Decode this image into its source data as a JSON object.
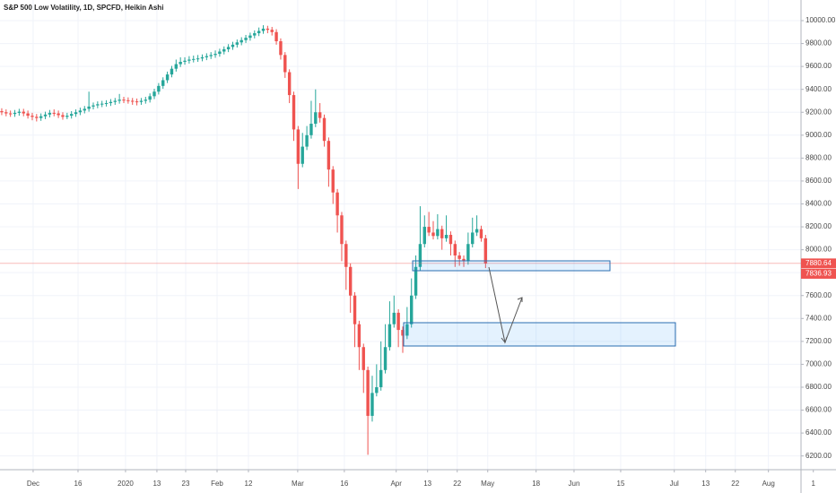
{
  "chart_data": {
    "type": "candlestick",
    "title": "S&P 500 Low Volatility, 1D, SPCFD, Heikin Ashi",
    "up_color": "#26a69a",
    "down_color": "#ef5350",
    "grid": true,
    "xlim": [
      -0.4,
      191.4
    ],
    "ylim": [
      6080,
      10180
    ],
    "xticks": [
      {
        "value": 7.2,
        "label": "Dec"
      },
      {
        "value": 17.5,
        "label": "16"
      },
      {
        "value": 28.4,
        "label": "2020"
      },
      {
        "value": 35.6,
        "label": "13"
      },
      {
        "value": 42.2,
        "label": "23"
      },
      {
        "value": 49.4,
        "label": "Feb"
      },
      {
        "value": 56.6,
        "label": "12"
      },
      {
        "value": 67.9,
        "label": "Mar"
      },
      {
        "value": 78.6,
        "label": "16"
      },
      {
        "value": 90.5,
        "label": "Apr"
      },
      {
        "value": 97.7,
        "label": "13"
      },
      {
        "value": 104.5,
        "label": "22"
      },
      {
        "value": 111.5,
        "label": "May"
      },
      {
        "value": 122.6,
        "label": "18"
      },
      {
        "value": 131.3,
        "label": "Jun"
      },
      {
        "value": 142.0,
        "label": "15"
      },
      {
        "value": 154.3,
        "label": "Jul"
      },
      {
        "value": 161.5,
        "label": "13"
      },
      {
        "value": 168.3,
        "label": "22"
      },
      {
        "value": 175.9,
        "label": "Aug"
      },
      {
        "value": 186.2,
        "label": "1"
      }
    ],
    "yticks": [
      {
        "value": 6200,
        "label": "6200.00"
      },
      {
        "value": 6400,
        "label": "6400.00"
      },
      {
        "value": 6600,
        "label": "6600.00"
      },
      {
        "value": 6800,
        "label": "6800.00"
      },
      {
        "value": 7000,
        "label": "7000.00"
      },
      {
        "value": 7200,
        "label": "7200.00"
      },
      {
        "value": 7400,
        "label": "7400.00"
      },
      {
        "value": 7600,
        "label": "7600.00"
      },
      {
        "value": 7800,
        "label": "7800.00"
      },
      {
        "value": 8000,
        "label": "8000.00"
      },
      {
        "value": 8200,
        "label": "8200.00"
      },
      {
        "value": 8400,
        "label": "8400.00"
      },
      {
        "value": 8600,
        "label": "8600.00"
      },
      {
        "value": 8800,
        "label": "8800.00"
      },
      {
        "value": 9000,
        "label": "9000.00"
      },
      {
        "value": 9200,
        "label": "9200.00"
      },
      {
        "value": 9400,
        "label": "9400.00"
      },
      {
        "value": 9600,
        "label": "9600.00"
      },
      {
        "value": 9800,
        "label": "9800.00"
      },
      {
        "value": 10000,
        "label": "10000.00"
      }
    ],
    "last_price": 7880.64,
    "second_price": 7836.93,
    "open": [
      9210,
      9200,
      9190,
      9185,
      9195,
      9205,
      9190,
      9170,
      9160,
      9150,
      9165,
      9180,
      9195,
      9190,
      9175,
      9160,
      9170,
      9185,
      9200,
      9215,
      9230,
      9250,
      9260,
      9270,
      9275,
      9280,
      9290,
      9300,
      9310,
      9305,
      9300,
      9295,
      9290,
      9300,
      9310,
      9340,
      9380,
      9430,
      9480,
      9530,
      9580,
      9620,
      9640,
      9650,
      9660,
      9665,
      9670,
      9680,
      9690,
      9700,
      9710,
      9730,
      9750,
      9770,
      9790,
      9810,
      9830,
      9850,
      9870,
      9890,
      9910,
      9930,
      9920,
      9900,
      9820,
      9700,
      9550,
      9350,
      9050,
      8750,
      8900,
      9000,
      9100,
      9200,
      9150,
      8950,
      8700,
      8500,
      8300,
      8050,
      7850,
      7600,
      7350,
      7150,
      6950,
      6550,
      6750,
      6800,
      6950,
      7150,
      7350,
      7450,
      7300,
      7250,
      7350,
      7600,
      7850,
      8050,
      8200,
      8150,
      8120,
      8180,
      8100,
      8130,
      8050,
      7950,
      7920,
      7900,
      8050,
      8150,
      8180,
      8100
    ],
    "high": [
      9235,
      9225,
      9215,
      9220,
      9230,
      9230,
      9215,
      9195,
      9185,
      9190,
      9205,
      9220,
      9225,
      9215,
      9200,
      9195,
      9210,
      9225,
      9240,
      9255,
      9380,
      9285,
      9295,
      9300,
      9305,
      9315,
      9325,
      9360,
      9335,
      9330,
      9325,
      9320,
      9325,
      9335,
      9365,
      9405,
      9455,
      9505,
      9555,
      9605,
      9660,
      9680,
      9680,
      9690,
      9695,
      9700,
      9705,
      9715,
      9725,
      9740,
      9755,
      9775,
      9795,
      9815,
      9835,
      9855,
      9875,
      9895,
      9915,
      9940,
      9960,
      9955,
      9945,
      9925,
      9845,
      9725,
      9575,
      9380,
      9080,
      9020,
      9080,
      9300,
      9400,
      9280,
      9180,
      8980,
      8730,
      8530,
      8330,
      8080,
      7880,
      7630,
      7380,
      7180,
      6980,
      6900,
      7000,
      7200,
      7350,
      7550,
      7600,
      7480,
      7330,
      7500,
      7750,
      7950,
      8380,
      8300,
      8330,
      8250,
      8310,
      8210,
      8300,
      8160,
      8080,
      7980,
      7950,
      8150,
      8280,
      8300,
      8210,
      8130
    ],
    "low": [
      9175,
      9165,
      9160,
      9160,
      9170,
      9165,
      9145,
      9130,
      9120,
      9125,
      9140,
      9155,
      9165,
      9150,
      9135,
      9140,
      9145,
      9160,
      9175,
      9190,
      9205,
      9225,
      9235,
      9245,
      9250,
      9255,
      9265,
      9275,
      9280,
      9275,
      9265,
      9260,
      9265,
      9275,
      9285,
      9315,
      9355,
      9405,
      9455,
      9505,
      9555,
      9595,
      9615,
      9625,
      9635,
      9640,
      9645,
      9655,
      9665,
      9675,
      9685,
      9705,
      9725,
      9745,
      9765,
      9785,
      9805,
      9825,
      9845,
      9865,
      9885,
      9890,
      9870,
      9790,
      9660,
      9500,
      9280,
      8950,
      8530,
      8720,
      8870,
      8970,
      9070,
      9110,
      8900,
      8550,
      8400,
      8150,
      7900,
      7650,
      7450,
      7150,
      6950,
      6750,
      6210,
      6500,
      6720,
      6770,
      6920,
      7120,
      7320,
      7150,
      7100,
      7220,
      7320,
      7570,
      7820,
      8020,
      8120,
      8090,
      8090,
      8000,
      8070,
      7950,
      7850,
      7860,
      7850,
      7870,
      8020,
      8120,
      8070,
      7840
    ],
    "close": [
      9200,
      9190,
      9185,
      9195,
      9205,
      9190,
      9170,
      9160,
      9150,
      9165,
      9180,
      9195,
      9190,
      9175,
      9160,
      9170,
      9185,
      9200,
      9215,
      9230,
      9250,
      9260,
      9270,
      9275,
      9280,
      9290,
      9300,
      9310,
      9305,
      9300,
      9295,
      9290,
      9300,
      9310,
      9340,
      9380,
      9430,
      9480,
      9530,
      9580,
      9620,
      9640,
      9650,
      9660,
      9665,
      9670,
      9680,
      9690,
      9700,
      9710,
      9730,
      9750,
      9770,
      9790,
      9810,
      9830,
      9850,
      9870,
      9890,
      9910,
      9930,
      9920,
      9900,
      9820,
      9700,
      9550,
      9350,
      9050,
      8750,
      8900,
      9000,
      9100,
      9200,
      9150,
      8950,
      8700,
      8500,
      8300,
      8050,
      7850,
      7600,
      7350,
      7150,
      6950,
      6550,
      6750,
      6800,
      6950,
      7150,
      7350,
      7450,
      7300,
      7250,
      7350,
      7600,
      7850,
      8050,
      8200,
      8150,
      8120,
      8180,
      8100,
      8130,
      8050,
      7950,
      7920,
      7900,
      8050,
      8150,
      8180,
      8100,
      7880
    ]
  }
}
